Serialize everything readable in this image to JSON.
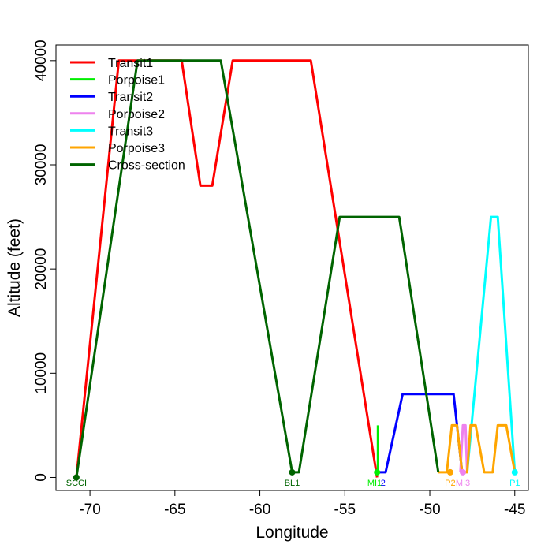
{
  "chart_data": {
    "type": "line",
    "title": "",
    "xlabel": "Longitude",
    "ylabel": "Altitude (feet)",
    "xlim": [
      -72,
      -44.2
    ],
    "ylim": [
      -1250,
      41500
    ],
    "x_ticks": [
      -70,
      -65,
      -60,
      -55,
      -50,
      -45
    ],
    "x_tick_labels": [
      "-70",
      "-65",
      "-60",
      "-55",
      "-50",
      "-45"
    ],
    "y_ticks": [
      0,
      10000,
      20000,
      30000,
      40000
    ],
    "y_tick_labels": [
      "0",
      "10000",
      "20000",
      "30000",
      "40000"
    ],
    "grid": false,
    "legend_position": "top-left",
    "series": [
      {
        "name": "Transit1",
        "color": "#ff0000",
        "x": [
          -70.8,
          -68.3,
          -64.6,
          -63.5,
          -62.8,
          -61.6,
          -57.0,
          -53.1
        ],
        "y": [
          0,
          40000,
          40000,
          28000,
          28000,
          40000,
          40000,
          0
        ]
      },
      {
        "name": "Porpoise1",
        "color": "#00ee00",
        "x": [
          -53.05,
          -53.05
        ],
        "y": [
          500,
          5000
        ]
      },
      {
        "name": "Transit2",
        "color": "#0000ff",
        "x": [
          -53.1,
          -52.6,
          -51.6,
          -48.6,
          -48.1
        ],
        "y": [
          500,
          500,
          8000,
          8000,
          500
        ]
      },
      {
        "name": "Porpoise2",
        "color": "#ee82ee",
        "x": [
          -48.2,
          -48.05,
          -47.9,
          -47.8
        ],
        "y": [
          500,
          5000,
          5000,
          500
        ]
      },
      {
        "name": "Transit3",
        "color": "#00ffff",
        "x": [
          -47.8,
          -46.4,
          -46.0,
          -45.0
        ],
        "y": [
          500,
          25000,
          25000,
          500
        ]
      },
      {
        "name": "Porpoise3",
        "color": "#ffa500",
        "x": [
          -49.5,
          -49.0,
          -48.7,
          -48.4,
          -48.1,
          -47.8,
          -47.6,
          -47.3,
          -46.8,
          -46.3,
          -46.0,
          -45.5,
          -45.0
        ],
        "y": [
          500,
          500,
          5000,
          5000,
          500,
          500,
          5000,
          5000,
          500,
          500,
          5000,
          5000,
          500
        ]
      },
      {
        "name": "Cross-section",
        "color": "#006400",
        "x": [
          -70.8,
          -67.2,
          -62.3,
          -58.1,
          -57.7,
          -55.3,
          -51.8,
          -49.5
        ],
        "y": [
          0,
          40000,
          40000,
          500,
          500,
          25000,
          25000,
          500
        ]
      }
    ],
    "point_markers": [
      {
        "x": -70.8,
        "y": 0,
        "color": "#006400"
      },
      {
        "x": -58.1,
        "y": 500,
        "color": "#006400"
      },
      {
        "x": -53.1,
        "y": 500,
        "color": "#00ee00"
      },
      {
        "x": -48.8,
        "y": 500,
        "color": "#ffa500"
      },
      {
        "x": -48.05,
        "y": 500,
        "color": "#ee82ee"
      },
      {
        "x": -45.0,
        "y": 500,
        "color": "#00ffff"
      }
    ],
    "point_labels": [
      {
        "text": "SCCI",
        "x": -70.8,
        "color": "#006400"
      },
      {
        "text": "BL1",
        "x": -58.1,
        "color": "#006400"
      },
      {
        "text": "MI1",
        "x": -53.25,
        "color": "#00ee00"
      },
      {
        "text": "2",
        "x": -52.75,
        "color": "#0000ff"
      },
      {
        "text": "P2",
        "x": -48.8,
        "color": "#ffa500"
      },
      {
        "text": "MI3",
        "x": -48.05,
        "color": "#ee82ee"
      },
      {
        "text": "P1",
        "x": -45.0,
        "color": "#00ffff"
      }
    ]
  }
}
